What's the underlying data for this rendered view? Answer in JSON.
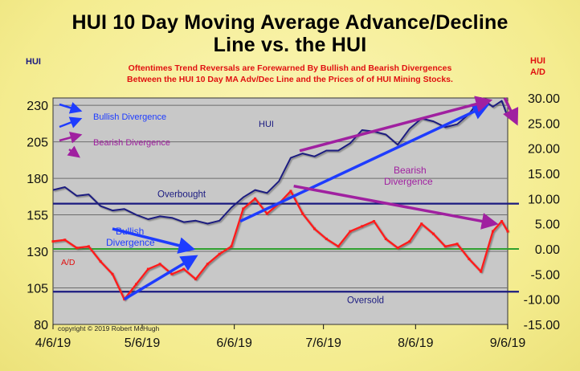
{
  "title_line1": "HUI 10 Day Moving Average Advance/Decline",
  "title_line2": "Line vs. the HUI",
  "subtitle_line1": "Oftentimes Trend Reversals are Forewarned By Bullish and Bearish Divergences",
  "subtitle_line2": "Between the HUI 10 Day MA Adv/Dec Line and the Prices of of HUI Mining Stocks.",
  "left_axis_label": "HUI",
  "right_axis_label_line1": "HUI",
  "right_axis_label_line2": "A/D",
  "copyright": "copyright © 2019 Robert McHugh",
  "colors": {
    "background": "#f4ec8f",
    "plot_background": "#c8c8c8",
    "hui_line": "#1a1a80",
    "ad_line": "#ff1a1a",
    "zero_line": "#2fa02f",
    "bullish_arrow": "#1e3cff",
    "bearish_arrow": "#a020a0",
    "threshold_line": "#1a1a80"
  },
  "chart_data": {
    "type": "line",
    "x_tick_labels": [
      "4/6/19",
      "5/6/19",
      "6/6/19",
      "7/6/19",
      "8/6/19",
      "9/6/19"
    ],
    "x_range": [
      "2019-04-06",
      "2019-09-06"
    ],
    "left_axis": {
      "label": "HUI",
      "ticks": [
        80,
        105,
        130,
        155,
        180,
        205,
        230
      ],
      "range": [
        80,
        235
      ]
    },
    "right_axis": {
      "label": "HUI A/D",
      "ticks": [
        "30.00",
        "25.00",
        "20.00",
        "15.00",
        "10.00",
        "5.00",
        "0.00",
        "-5.00",
        "-10.00",
        "-15.00"
      ],
      "range": [
        -15,
        30
      ]
    },
    "series": [
      {
        "name": "HUI",
        "axis": "left",
        "points": [
          [
            "2019-04-06",
            172
          ],
          [
            "2019-04-10",
            174
          ],
          [
            "2019-04-14",
            168
          ],
          [
            "2019-04-18",
            169
          ],
          [
            "2019-04-22",
            161
          ],
          [
            "2019-04-26",
            158
          ],
          [
            "2019-04-30",
            159
          ],
          [
            "2019-05-04",
            155
          ],
          [
            "2019-05-08",
            152
          ],
          [
            "2019-05-12",
            154
          ],
          [
            "2019-05-16",
            153
          ],
          [
            "2019-05-20",
            150
          ],
          [
            "2019-05-24",
            151
          ],
          [
            "2019-05-28",
            149
          ],
          [
            "2019-06-01",
            151
          ],
          [
            "2019-06-05",
            160
          ],
          [
            "2019-06-09",
            167
          ],
          [
            "2019-06-13",
            172
          ],
          [
            "2019-06-17",
            170
          ],
          [
            "2019-06-21",
            178
          ],
          [
            "2019-06-25",
            194
          ],
          [
            "2019-06-29",
            197
          ],
          [
            "2019-07-03",
            195
          ],
          [
            "2019-07-07",
            199
          ],
          [
            "2019-07-11",
            199
          ],
          [
            "2019-07-15",
            204
          ],
          [
            "2019-07-19",
            213
          ],
          [
            "2019-07-23",
            212
          ],
          [
            "2019-07-27",
            210
          ],
          [
            "2019-07-31",
            203
          ],
          [
            "2019-08-04",
            214
          ],
          [
            "2019-08-08",
            221
          ],
          [
            "2019-08-12",
            219
          ],
          [
            "2019-08-16",
            215
          ],
          [
            "2019-08-20",
            217
          ],
          [
            "2019-08-24",
            224
          ],
          [
            "2019-08-28",
            235
          ],
          [
            "2019-09-01",
            229
          ],
          [
            "2019-09-04",
            233
          ],
          [
            "2019-09-06",
            222
          ]
        ]
      },
      {
        "name": "A/D",
        "axis": "right",
        "points": [
          [
            "2019-04-06",
            1.5
          ],
          [
            "2019-04-10",
            1.8
          ],
          [
            "2019-04-14",
            0.2
          ],
          [
            "2019-04-18",
            0.5
          ],
          [
            "2019-04-22",
            -2.5
          ],
          [
            "2019-04-26",
            -5.0
          ],
          [
            "2019-04-30",
            -10.0
          ],
          [
            "2019-05-04",
            -7.0
          ],
          [
            "2019-05-08",
            -4.0
          ],
          [
            "2019-05-12",
            -3.0
          ],
          [
            "2019-05-16",
            -5.0
          ],
          [
            "2019-05-20",
            -4.0
          ],
          [
            "2019-05-24",
            -6.0
          ],
          [
            "2019-05-28",
            -3.0
          ],
          [
            "2019-06-01",
            -1.0
          ],
          [
            "2019-06-05",
            0.5
          ],
          [
            "2019-06-09",
            8.0
          ],
          [
            "2019-06-13",
            10.0
          ],
          [
            "2019-06-17",
            7.0
          ],
          [
            "2019-06-21",
            9.0
          ],
          [
            "2019-06-25",
            11.5
          ],
          [
            "2019-06-29",
            7.0
          ],
          [
            "2019-07-03",
            4.0
          ],
          [
            "2019-07-07",
            2.0
          ],
          [
            "2019-07-11",
            0.5
          ],
          [
            "2019-07-15",
            3.5
          ],
          [
            "2019-07-19",
            4.5
          ],
          [
            "2019-07-23",
            5.5
          ],
          [
            "2019-07-27",
            2.0
          ],
          [
            "2019-07-31",
            0.2
          ],
          [
            "2019-08-04",
            1.5
          ],
          [
            "2019-08-08",
            5.0
          ],
          [
            "2019-08-12",
            3.0
          ],
          [
            "2019-08-16",
            0.5
          ],
          [
            "2019-08-20",
            1.0
          ],
          [
            "2019-08-24",
            -2.0
          ],
          [
            "2019-08-28",
            -4.5
          ],
          [
            "2019-09-01",
            3.5
          ],
          [
            "2019-09-04",
            5.5
          ],
          [
            "2019-09-06",
            3.5
          ]
        ]
      }
    ],
    "reference_lines": [
      {
        "label": "Overbought",
        "axis": "right",
        "value": 9.0,
        "color": "#1a1a80"
      },
      {
        "label": "Oversold",
        "axis": "right",
        "value": -8.5,
        "color": "#1a1a80"
      },
      {
        "label": "",
        "axis": "right",
        "value": 0.0,
        "color": "#2fa02f"
      }
    ],
    "annotations": [
      {
        "text": "Bullish Divergence",
        "color": "#1e3cff"
      },
      {
        "text": "Bearish Divergence",
        "color": "#a020a0"
      },
      {
        "text": "HUI",
        "color": "#1a1a80"
      },
      {
        "text": "A/D",
        "color": "#e01010"
      },
      {
        "text": "Bullish Divergence",
        "color": "#1e3cff"
      },
      {
        "text": "Bearish Divergence",
        "color": "#a020a0"
      }
    ],
    "divergence_arrows": [
      {
        "kind": "bullish",
        "from": [
          "2019-04-26",
          4.0
        ],
        "to": [
          "2019-05-23",
          0.0
        ],
        "axis": "right"
      },
      {
        "kind": "bullish",
        "from": [
          "2019-04-30",
          -10.0
        ],
        "to": [
          "2019-05-24",
          -1.5
        ],
        "axis": "right"
      },
      {
        "kind": "bullish",
        "from": [
          "2019-06-08",
          5.5
        ],
        "to": [
          "2019-08-30",
          28.5
        ],
        "axis": "right"
      },
      {
        "kind": "bearish",
        "from": [
          "2019-06-28",
          19.5
        ],
        "to": [
          "2019-08-31",
          29.5
        ],
        "axis": "right"
      },
      {
        "kind": "bearish",
        "from": [
          "2019-06-26",
          12.5
        ],
        "to": [
          "2019-09-02",
          5.0
        ],
        "axis": "right"
      },
      {
        "kind": "bearish",
        "from": [
          "2019-09-05",
          30.0
        ],
        "to": [
          "2019-09-09",
          25.0
        ],
        "axis": "right"
      }
    ]
  }
}
